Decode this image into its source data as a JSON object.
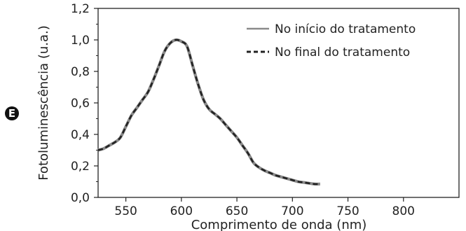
{
  "panel_label": "E",
  "chart_data": {
    "type": "line",
    "title": "",
    "xlabel": "Comprimento de onda (nm)",
    "ylabel": "Fotoluminescência (u.a.)",
    "xlim": [
      525,
      850
    ],
    "ylim": [
      0,
      1.2
    ],
    "xticks": [
      550,
      600,
      650,
      700,
      750,
      800
    ],
    "xtick_labels": [
      "550",
      "600",
      "650",
      "700",
      "750",
      "800"
    ],
    "yticks": [
      0,
      0.2,
      0.4,
      0.6,
      0.8,
      1.0,
      1.2
    ],
    "ytick_labels": [
      "0,0",
      "0,2",
      "0,4",
      "0,6",
      "0,8",
      "1,0",
      "1,2"
    ],
    "legend_position": "top-right",
    "grid": false,
    "x": [
      525,
      530,
      535,
      540,
      545,
      550,
      555,
      560,
      565,
      570,
      575,
      580,
      585,
      590,
      595,
      600,
      605,
      610,
      615,
      620,
      625,
      630,
      635,
      640,
      645,
      650,
      655,
      660,
      665,
      670,
      675,
      680,
      685,
      690,
      695,
      700,
      705,
      710,
      715,
      720,
      725
    ],
    "series": [
      {
        "name": "No início do tratamento",
        "color": "#8a8a8a",
        "style": "solid",
        "values": [
          0.3,
          0.31,
          0.33,
          0.35,
          0.38,
          0.45,
          0.52,
          0.57,
          0.62,
          0.67,
          0.75,
          0.84,
          0.93,
          0.98,
          1.0,
          0.99,
          0.96,
          0.84,
          0.72,
          0.62,
          0.56,
          0.53,
          0.5,
          0.46,
          0.42,
          0.38,
          0.33,
          0.28,
          0.22,
          0.19,
          0.17,
          0.155,
          0.14,
          0.13,
          0.12,
          0.11,
          0.1,
          0.095,
          0.09,
          0.085,
          0.085
        ]
      },
      {
        "name": "No final do tratamento",
        "color": "#222222",
        "style": "dashed",
        "values": [
          0.3,
          0.31,
          0.33,
          0.35,
          0.38,
          0.45,
          0.52,
          0.57,
          0.62,
          0.67,
          0.75,
          0.84,
          0.93,
          0.98,
          1.0,
          0.99,
          0.96,
          0.84,
          0.72,
          0.62,
          0.56,
          0.53,
          0.5,
          0.46,
          0.42,
          0.38,
          0.33,
          0.28,
          0.22,
          0.19,
          0.17,
          0.155,
          0.14,
          0.13,
          0.12,
          0.11,
          0.1,
          0.095,
          0.09,
          0.085,
          0.085
        ]
      }
    ]
  }
}
